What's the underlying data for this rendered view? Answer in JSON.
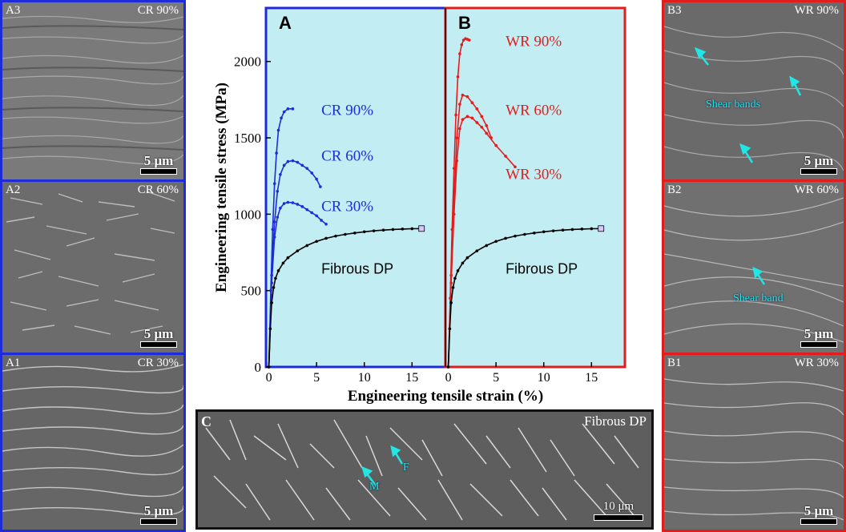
{
  "colors": {
    "cr": "#1f2bd8",
    "wr": "#e31d1d",
    "dp": "#000000",
    "plot_bg": "#c2eef3",
    "frame_a": "#1f2bd8",
    "frame_b": "#e31d1d",
    "arrow": "#22e6e6"
  },
  "left_panels": [
    {
      "id": "A3",
      "label": "A3",
      "condition": "CR 90%",
      "scale": "5 μm"
    },
    {
      "id": "A2",
      "label": "A2",
      "condition": "CR 60%",
      "scale": "5 μm"
    },
    {
      "id": "A1",
      "label": "A1",
      "condition": "CR 30%",
      "scale": "5 μm"
    }
  ],
  "right_panels": [
    {
      "id": "B3",
      "label": "B3",
      "condition": "WR 90%",
      "scale": "5 μm",
      "annotation": "Shear bands"
    },
    {
      "id": "B2",
      "label": "B2",
      "condition": "WR 60%",
      "scale": "5 μm",
      "annotation": "Shear band"
    },
    {
      "id": "B1",
      "label": "B1",
      "condition": "WR 30%",
      "scale": "5 μm"
    }
  ],
  "bottom_panel": {
    "label": "C",
    "condition": "Fibrous DP",
    "scale": "10 μm",
    "phase_m": "M",
    "phase_f": "F"
  },
  "chart_data": {
    "type": "line",
    "xlabel": "Engineering tensile strain (%)",
    "ylabel": "Engineering tensile stress (MPa)",
    "yticks": [
      0,
      500,
      1000,
      1500,
      2000
    ],
    "ylim": [
      0,
      2350
    ],
    "subplots": [
      {
        "label": "A",
        "xticks": [
          0,
          5,
          10,
          15
        ],
        "xlim": [
          -0.3,
          18.5
        ],
        "series": [
          {
            "name": "CR 90%",
            "color": "#1f2bd8",
            "x": [
              0,
              0.2,
              0.4,
              0.6,
              0.8,
              1,
              1.3,
              1.6,
              2,
              2.5
            ],
            "y": [
              0,
              500,
              900,
              1200,
              1400,
              1550,
              1630,
              1670,
              1690,
              1690
            ]
          },
          {
            "name": "CR 60%",
            "color": "#1f2bd8",
            "x": [
              0,
              0.3,
              0.6,
              0.9,
              1.2,
              1.6,
              2,
              2.5,
              3,
              3.5,
              4,
              4.5,
              5,
              5.4
            ],
            "y": [
              0,
              600,
              950,
              1150,
              1260,
              1320,
              1345,
              1350,
              1340,
              1320,
              1300,
              1270,
              1230,
              1180
            ]
          },
          {
            "name": "CR 30%",
            "color": "#1f2bd8",
            "x": [
              0,
              0.3,
              0.6,
              0.9,
              1.2,
              1.6,
              2,
              2.5,
              3,
              3.5,
              4,
              4.5,
              5,
              5.5,
              6
            ],
            "y": [
              0,
              550,
              850,
              980,
              1040,
              1070,
              1078,
              1075,
              1065,
              1050,
              1030,
              1010,
              990,
              960,
              935
            ]
          },
          {
            "name": "Fibrous DP",
            "color": "#000000",
            "x": [
              0,
              0.15,
              0.3,
              0.5,
              0.7,
              1,
              1.5,
              2,
              3,
              4,
              5,
              6,
              7,
              8,
              9,
              10,
              11,
              12,
              13,
              14,
              15,
              16
            ],
            "y": [
              0,
              250,
              420,
              520,
              580,
              630,
              680,
              715,
              760,
              795,
              822,
              842,
              857,
              868,
              877,
              885,
              891,
              896,
              900,
              903,
              905,
              906
            ]
          }
        ],
        "labels": [
          {
            "text": "CR 90%",
            "x": 5.5,
            "y": 1650
          },
          {
            "text": "CR 60%",
            "x": 5.5,
            "y": 1350
          },
          {
            "text": "CR 30%",
            "x": 5.5,
            "y": 1020
          },
          {
            "text": "Fibrous DP",
            "x": 5.5,
            "y": 610
          }
        ]
      },
      {
        "label": "B",
        "xticks": [
          0,
          5,
          10,
          15
        ],
        "xlim": [
          -0.3,
          18.5
        ],
        "series": [
          {
            "name": "WR 90%",
            "color": "#e31d1d",
            "x": [
              0,
              0.2,
              0.4,
              0.6,
              0.8,
              1,
              1.2,
              1.4,
              1.6,
              1.8,
              2,
              2.2
            ],
            "y": [
              0,
              450,
              900,
              1300,
              1650,
              1900,
              2050,
              2110,
              2140,
              2150,
              2145,
              2140
            ]
          },
          {
            "name": "WR 60%",
            "color": "#e31d1d",
            "x": [
              0,
              0.3,
              0.6,
              0.9,
              1.2,
              1.5,
              2,
              2.5,
              3,
              3.5,
              4,
              4.5
            ],
            "y": [
              0,
              600,
              1100,
              1500,
              1720,
              1780,
              1770,
              1730,
              1690,
              1640,
              1580,
              1500
            ]
          },
          {
            "name": "WR 30%",
            "color": "#e31d1d",
            "x": [
              0,
              0.3,
              0.6,
              0.9,
              1.2,
              1.5,
              2,
              2.5,
              3,
              3.5,
              4,
              5,
              6,
              7
            ],
            "y": [
              0,
              550,
              1000,
              1350,
              1560,
              1620,
              1640,
              1630,
              1600,
              1570,
              1530,
              1450,
              1380,
              1310
            ]
          },
          {
            "name": "Fibrous DP",
            "color": "#000000",
            "x": [
              0,
              0.15,
              0.3,
              0.5,
              0.7,
              1,
              1.5,
              2,
              3,
              4,
              5,
              6,
              7,
              8,
              9,
              10,
              11,
              12,
              13,
              14,
              15,
              16
            ],
            "y": [
              0,
              250,
              420,
              520,
              580,
              630,
              680,
              715,
              760,
              795,
              822,
              842,
              857,
              868,
              877,
              885,
              891,
              896,
              900,
              903,
              905,
              906
            ]
          }
        ],
        "labels": [
          {
            "text": "WR 90%",
            "x": 6,
            "y": 2100
          },
          {
            "text": "WR 60%",
            "x": 6,
            "y": 1650
          },
          {
            "text": "WR 30%",
            "x": 6,
            "y": 1230
          },
          {
            "text": "Fibrous DP",
            "x": 6,
            "y": 610
          }
        ]
      }
    ]
  }
}
